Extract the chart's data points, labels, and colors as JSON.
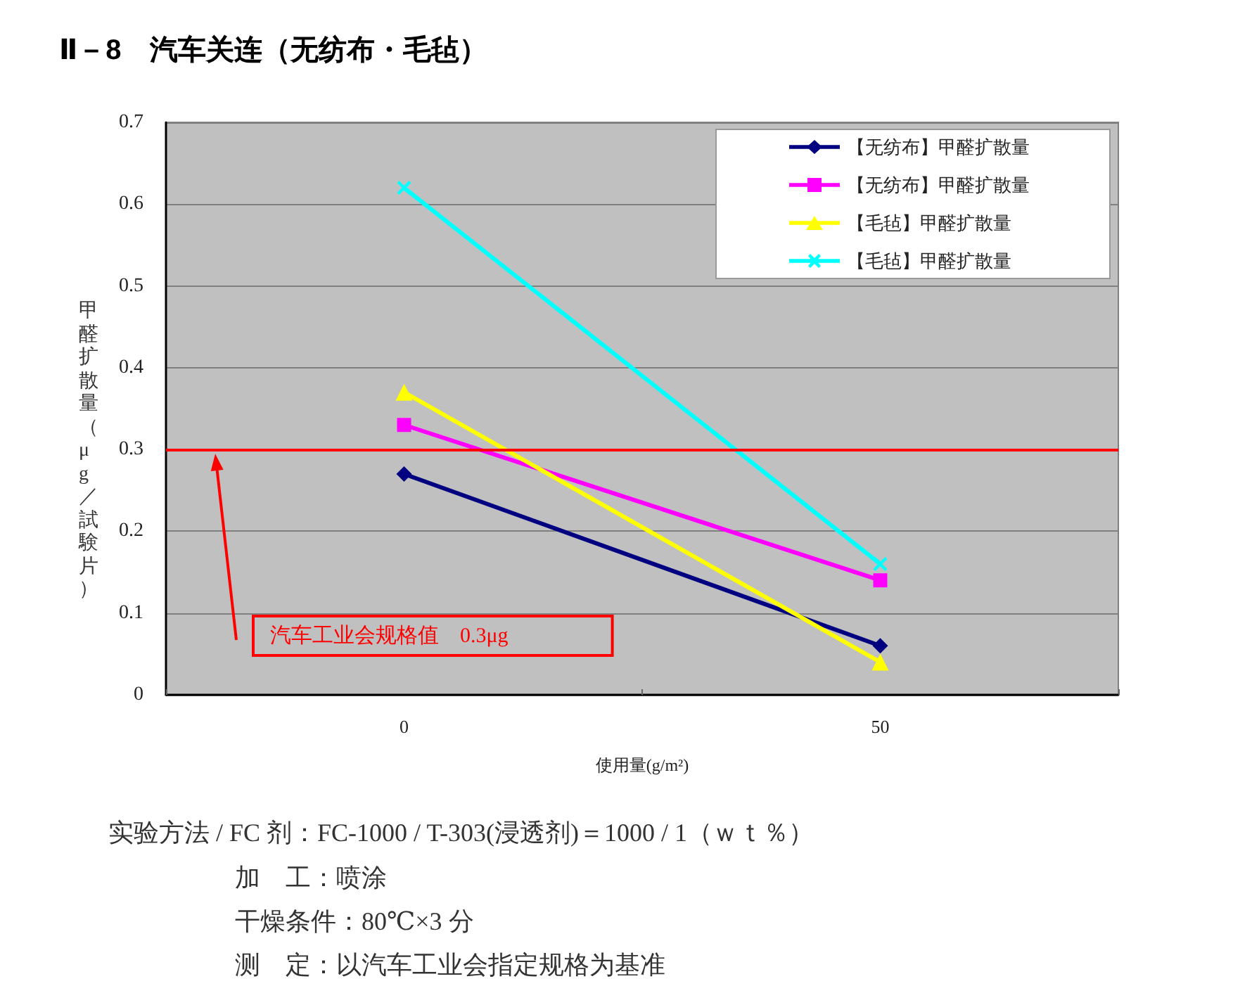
{
  "chart_data": {
    "type": "line",
    "title": "Ⅱ－8　汽车关连（无纺布・毛毡）",
    "xlabel": "使用量(g/m²)",
    "ylabel": "甲醛扩散量（μg／試験片）",
    "categories": [
      "0",
      "50"
    ],
    "series": [
      {
        "name": "【无纺布】甲醛扩散量",
        "color": "#000080",
        "marker": "diamond",
        "values": [
          0.27,
          0.06
        ]
      },
      {
        "name": "【无纺布】甲醛扩散量",
        "color": "#ff00ff",
        "marker": "square",
        "values": [
          0.33,
          0.14
        ]
      },
      {
        "name": "【毛毡】甲醛扩散量",
        "color": "#ffff00",
        "marker": "triangle",
        "values": [
          0.37,
          0.04
        ]
      },
      {
        "name": "【毛毡】甲醛扩散量",
        "color": "#00ffff",
        "marker": "cross",
        "values": [
          0.62,
          0.16
        ]
      }
    ],
    "ylim": [
      0,
      0.7
    ],
    "yticks": [
      0,
      0.1,
      0.2,
      0.3,
      0.4,
      0.5,
      0.6,
      0.7
    ],
    "grid": "y",
    "legend": "top right",
    "ref_lines": [
      {
        "axis": "y",
        "value": 0.3,
        "label": "汽车工业会规格值　0.3μg",
        "color": "#ff0000"
      }
    ],
    "annotations": [
      "实验方法 / FC 剂：FC-1000 / T-303(浸透剂)＝1000 / 1（ｗｔ％）",
      "加　工：喷涂",
      "干燥条件：80℃×3 分",
      "测　定：以汽车工业会指定规格为基准"
    ]
  }
}
